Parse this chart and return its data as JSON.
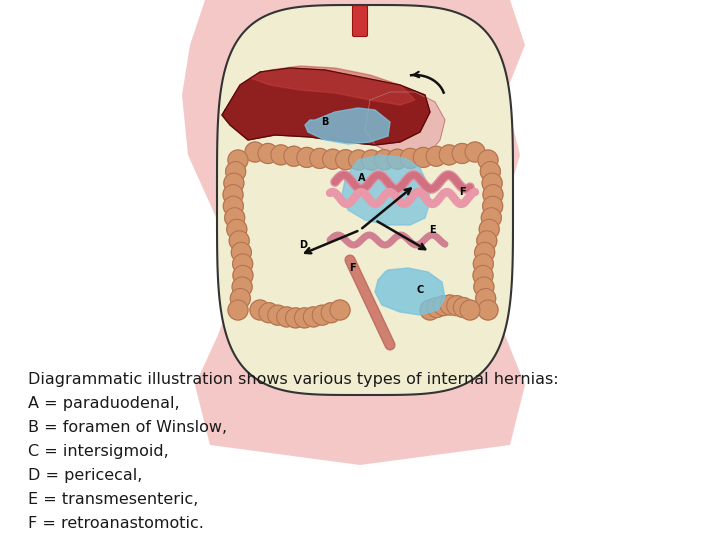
{
  "title_line": "Diagrammatic illustration shows various types of internal hernias:",
  "lines": [
    "A = paraduodenal,",
    "B = foramen of Winslow,",
    "C = intersigmoid,",
    "D = pericecal,",
    "E = transmesenteric,",
    "F = retroanastomotic."
  ],
  "bg_color": "#ffffff",
  "text_color": "#1a1a1a",
  "font_size": 11.5,
  "body_bg": "#f5c8c8",
  "abdom_bg": "#f0edd0",
  "liver_dark": "#8b1515",
  "liver_light": "#c44040",
  "stomach_color": "#e8a0a0",
  "intestine_color": "#d4956a",
  "intestine_dark": "#b07050",
  "blue_color": "#7ac4de",
  "pink_tube": "#e8b0b0",
  "esoph_color": "#cc3333",
  "arrow_color": "#111111"
}
